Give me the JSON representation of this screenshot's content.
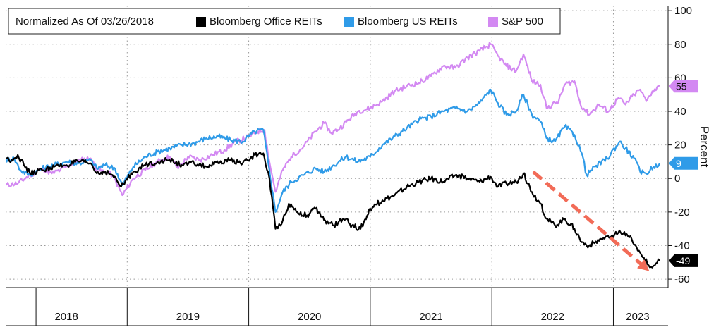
{
  "chart_data": {
    "type": "line",
    "title": "",
    "legend": {
      "title": "Normalized As Of 03/26/2018",
      "placement": "top-left"
    },
    "xlabel": "",
    "ylabel": "Percent",
    "ylim": [
      -65,
      103
    ],
    "yticks": [
      100,
      80,
      60,
      40,
      20,
      0,
      -20,
      -40,
      -60
    ],
    "x_range": [
      2018.0,
      2023.45
    ],
    "x_year_labels": [
      {
        "label": "2018",
        "x": 2018.5
      },
      {
        "label": "2019",
        "x": 2019.5
      },
      {
        "label": "2020",
        "x": 2020.5
      },
      {
        "label": "2021",
        "x": 2021.5
      },
      {
        "label": "2022",
        "x": 2022.5
      },
      {
        "label": "2023",
        "x": 2023.2
      }
    ],
    "x_year_boundaries": [
      2019,
      2020,
      2021,
      2022,
      2023
    ],
    "grid": true,
    "series": [
      {
        "name": "S&P 500",
        "color": "#d389f2",
        "last_value_label": "55",
        "points": [
          [
            2018.0,
            -4
          ],
          [
            2018.1,
            -3
          ],
          [
            2018.2,
            2
          ],
          [
            2018.3,
            6
          ],
          [
            2018.38,
            3
          ],
          [
            2018.45,
            5
          ],
          [
            2018.55,
            9
          ],
          [
            2018.62,
            11
          ],
          [
            2018.7,
            12
          ],
          [
            2018.75,
            5
          ],
          [
            2018.82,
            4
          ],
          [
            2018.88,
            2
          ],
          [
            2018.96,
            -10
          ],
          [
            2019.05,
            0
          ],
          [
            2019.15,
            5
          ],
          [
            2019.25,
            10
          ],
          [
            2019.35,
            13
          ],
          [
            2019.42,
            6
          ],
          [
            2019.5,
            13
          ],
          [
            2019.6,
            11
          ],
          [
            2019.7,
            14
          ],
          [
            2019.8,
            17
          ],
          [
            2019.9,
            22
          ],
          [
            2020.0,
            25
          ],
          [
            2020.07,
            28
          ],
          [
            2020.13,
            29
          ],
          [
            2020.17,
            10
          ],
          [
            2020.22,
            -8
          ],
          [
            2020.28,
            5
          ],
          [
            2020.35,
            13
          ],
          [
            2020.45,
            19
          ],
          [
            2020.55,
            28
          ],
          [
            2020.62,
            33
          ],
          [
            2020.68,
            27
          ],
          [
            2020.75,
            30
          ],
          [
            2020.82,
            35
          ],
          [
            2020.9,
            40
          ],
          [
            2021.0,
            42
          ],
          [
            2021.1,
            46
          ],
          [
            2021.2,
            52
          ],
          [
            2021.3,
            55
          ],
          [
            2021.4,
            57
          ],
          [
            2021.5,
            61
          ],
          [
            2021.6,
            67
          ],
          [
            2021.7,
            66
          ],
          [
            2021.8,
            72
          ],
          [
            2021.9,
            76
          ],
          [
            2021.99,
            80
          ],
          [
            2022.05,
            73
          ],
          [
            2022.12,
            67
          ],
          [
            2022.2,
            64
          ],
          [
            2022.26,
            74
          ],
          [
            2022.33,
            58
          ],
          [
            2022.4,
            56
          ],
          [
            2022.45,
            42
          ],
          [
            2022.55,
            46
          ],
          [
            2022.6,
            56
          ],
          [
            2022.68,
            58
          ],
          [
            2022.73,
            44
          ],
          [
            2022.8,
            38
          ],
          [
            2022.88,
            44
          ],
          [
            2022.96,
            40
          ],
          [
            2023.04,
            48
          ],
          [
            2023.1,
            44
          ],
          [
            2023.17,
            50
          ],
          [
            2023.22,
            53
          ],
          [
            2023.27,
            46
          ],
          [
            2023.32,
            52
          ],
          [
            2023.38,
            55
          ]
        ]
      },
      {
        "name": "Bloomberg US REITs",
        "color": "#2f9be8",
        "last_value_label": "9",
        "points": [
          [
            2018.0,
            11
          ],
          [
            2018.07,
            12
          ],
          [
            2018.12,
            5
          ],
          [
            2018.2,
            2
          ],
          [
            2018.3,
            6
          ],
          [
            2018.4,
            8
          ],
          [
            2018.5,
            10
          ],
          [
            2018.6,
            9
          ],
          [
            2018.7,
            11
          ],
          [
            2018.75,
            6
          ],
          [
            2018.82,
            8
          ],
          [
            2018.9,
            6
          ],
          [
            2018.96,
            -4
          ],
          [
            2019.05,
            7
          ],
          [
            2019.15,
            13
          ],
          [
            2019.25,
            16
          ],
          [
            2019.35,
            18
          ],
          [
            2019.45,
            20
          ],
          [
            2019.55,
            21
          ],
          [
            2019.65,
            24
          ],
          [
            2019.75,
            25
          ],
          [
            2019.85,
            23
          ],
          [
            2019.95,
            22
          ],
          [
            2020.05,
            28
          ],
          [
            2020.12,
            29
          ],
          [
            2020.17,
            5
          ],
          [
            2020.22,
            -20
          ],
          [
            2020.28,
            -8
          ],
          [
            2020.35,
            -2
          ],
          [
            2020.45,
            2
          ],
          [
            2020.55,
            6
          ],
          [
            2020.62,
            4
          ],
          [
            2020.7,
            8
          ],
          [
            2020.8,
            13
          ],
          [
            2020.9,
            10
          ],
          [
            2021.0,
            13
          ],
          [
            2021.1,
            20
          ],
          [
            2021.2,
            25
          ],
          [
            2021.3,
            30
          ],
          [
            2021.4,
            35
          ],
          [
            2021.5,
            37
          ],
          [
            2021.6,
            40
          ],
          [
            2021.7,
            42
          ],
          [
            2021.8,
            40
          ],
          [
            2021.9,
            45
          ],
          [
            2021.99,
            53
          ],
          [
            2022.05,
            45
          ],
          [
            2022.12,
            38
          ],
          [
            2022.2,
            40
          ],
          [
            2022.26,
            50
          ],
          [
            2022.33,
            38
          ],
          [
            2022.4,
            34
          ],
          [
            2022.45,
            24
          ],
          [
            2022.52,
            22
          ],
          [
            2022.6,
            31
          ],
          [
            2022.68,
            26
          ],
          [
            2022.74,
            15
          ],
          [
            2022.78,
            2
          ],
          [
            2022.85,
            7
          ],
          [
            2022.95,
            12
          ],
          [
            2023.05,
            22
          ],
          [
            2023.1,
            18
          ],
          [
            2023.17,
            12
          ],
          [
            2023.22,
            4
          ],
          [
            2023.27,
            3
          ],
          [
            2023.33,
            7
          ],
          [
            2023.38,
            9
          ]
        ]
      },
      {
        "name": "Bloomberg Office REITs",
        "color": "#000000",
        "last_value_label": "-49",
        "points": [
          [
            2018.0,
            12
          ],
          [
            2018.05,
            11
          ],
          [
            2018.1,
            14
          ],
          [
            2018.15,
            8
          ],
          [
            2018.2,
            3
          ],
          [
            2018.3,
            5
          ],
          [
            2018.4,
            7
          ],
          [
            2018.5,
            8
          ],
          [
            2018.6,
            10
          ],
          [
            2018.7,
            9
          ],
          [
            2018.75,
            3
          ],
          [
            2018.82,
            4
          ],
          [
            2018.88,
            2
          ],
          [
            2018.95,
            -5
          ],
          [
            2019.05,
            4
          ],
          [
            2019.15,
            8
          ],
          [
            2019.25,
            10
          ],
          [
            2019.35,
            11
          ],
          [
            2019.45,
            8
          ],
          [
            2019.55,
            9
          ],
          [
            2019.65,
            7
          ],
          [
            2019.75,
            9
          ],
          [
            2019.85,
            11
          ],
          [
            2019.95,
            9
          ],
          [
            2020.05,
            14
          ],
          [
            2020.12,
            15
          ],
          [
            2020.17,
            0
          ],
          [
            2020.22,
            -30
          ],
          [
            2020.28,
            -25
          ],
          [
            2020.33,
            -15
          ],
          [
            2020.4,
            -20
          ],
          [
            2020.48,
            -22
          ],
          [
            2020.55,
            -18
          ],
          [
            2020.62,
            -25
          ],
          [
            2020.7,
            -28
          ],
          [
            2020.78,
            -24
          ],
          [
            2020.85,
            -28
          ],
          [
            2020.92,
            -30
          ],
          [
            2021.0,
            -18
          ],
          [
            2021.1,
            -13
          ],
          [
            2021.2,
            -10
          ],
          [
            2021.3,
            -5
          ],
          [
            2021.4,
            -2
          ],
          [
            2021.5,
            0
          ],
          [
            2021.6,
            -2
          ],
          [
            2021.7,
            2
          ],
          [
            2021.8,
            0
          ],
          [
            2021.9,
            -2
          ],
          [
            2021.99,
            1
          ],
          [
            2022.05,
            -5
          ],
          [
            2022.12,
            -3
          ],
          [
            2022.2,
            -2
          ],
          [
            2022.26,
            3
          ],
          [
            2022.33,
            -8
          ],
          [
            2022.4,
            -15
          ],
          [
            2022.45,
            -24
          ],
          [
            2022.52,
            -28
          ],
          [
            2022.6,
            -24
          ],
          [
            2022.68,
            -30
          ],
          [
            2022.74,
            -38
          ],
          [
            2022.8,
            -40
          ],
          [
            2022.9,
            -36
          ],
          [
            2023.0,
            -35
          ],
          [
            2023.05,
            -31
          ],
          [
            2023.1,
            -34
          ],
          [
            2023.15,
            -36
          ],
          [
            2023.2,
            -43
          ],
          [
            2023.25,
            -47
          ],
          [
            2023.3,
            -53
          ],
          [
            2023.33,
            -52
          ],
          [
            2023.38,
            -49
          ]
        ]
      }
    ],
    "annotations": [
      {
        "type": "trend-arrow",
        "color": "#f26b57",
        "from": [
          2022.34,
          4
        ],
        "to": [
          2023.26,
          -53
        ]
      }
    ]
  }
}
